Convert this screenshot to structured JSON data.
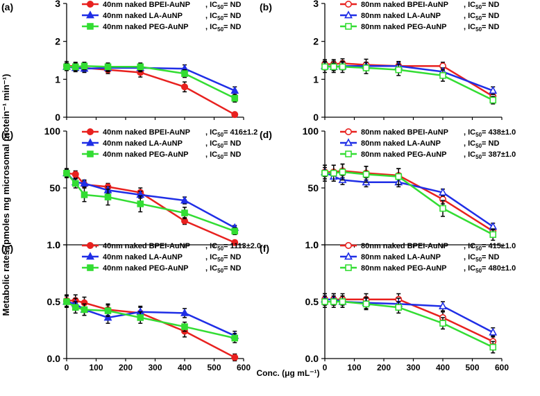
{
  "figure": {
    "ylabel": "Metabolic rates (pmoles mg microsomal protein⁻¹ min⁻¹)",
    "xlabel": "Conc. (μg mL⁻¹)",
    "x_ticks": [
      "0",
      "100",
      "200",
      "300",
      "400",
      "500",
      "600"
    ]
  },
  "colors": {
    "red": "#e8211f",
    "blue": "#1f2ee6",
    "green": "#33dd33",
    "error_bar": "#000000"
  },
  "chart_data": [
    {
      "panel": "(a)",
      "type": "line",
      "marker_style": "filled",
      "x": [
        0,
        30,
        60,
        140,
        250,
        400,
        570
      ],
      "xlim": [
        0,
        600
      ],
      "ylim": [
        0,
        3
      ],
      "yticks": [
        "0",
        "1",
        "2",
        "3"
      ],
      "series": [
        {
          "name": "40nm naked BPEI-AuNP",
          "ic50": "ND",
          "color": "#e8211f",
          "marker": "circle",
          "values": [
            1.35,
            1.35,
            1.3,
            1.25,
            1.18,
            0.8,
            0.07
          ],
          "errors": [
            0.12,
            0.1,
            0.1,
            0.1,
            0.12,
            0.13,
            0.05
          ]
        },
        {
          "name": "40nm naked LA-AuNP",
          "ic50": "ND",
          "color": "#1f2ee6",
          "marker": "triangle",
          "values": [
            1.33,
            1.3,
            1.28,
            1.3,
            1.3,
            1.28,
            0.7
          ],
          "errors": [
            0.1,
            0.1,
            0.1,
            0.1,
            0.1,
            0.1,
            0.1
          ]
        },
        {
          "name": "40nm naked PEG-AuNP",
          "ic50": "ND",
          "color": "#33dd33",
          "marker": "square",
          "values": [
            1.33,
            1.33,
            1.35,
            1.33,
            1.33,
            1.15,
            0.5
          ],
          "errors": [
            0.1,
            0.1,
            0.1,
            0.1,
            0.1,
            0.1,
            0.1
          ]
        }
      ]
    },
    {
      "panel": "(b)",
      "type": "line",
      "marker_style": "open",
      "x": [
        0,
        30,
        60,
        140,
        250,
        400,
        570
      ],
      "xlim": [
        0,
        600
      ],
      "ylim": [
        0,
        3
      ],
      "yticks": [
        "0",
        "1",
        "2",
        "3"
      ],
      "series": [
        {
          "name": "80nm naked BPEI-AuNP",
          "ic50": "ND",
          "color": "#e8211f",
          "marker": "circle",
          "values": [
            1.4,
            1.4,
            1.42,
            1.38,
            1.35,
            1.35,
            0.55
          ],
          "errors": [
            0.12,
            0.12,
            0.12,
            0.15,
            0.12,
            0.1,
            0.1
          ]
        },
        {
          "name": "80nm naked LA-AuNP",
          "ic50": "ND",
          "color": "#1f2ee6",
          "marker": "triangle",
          "values": [
            1.35,
            1.33,
            1.35,
            1.35,
            1.35,
            1.2,
            0.7
          ],
          "errors": [
            0.1,
            0.1,
            0.1,
            0.1,
            0.1,
            0.1,
            0.1
          ]
        },
        {
          "name": "80nm naked PEG-AuNP",
          "ic50": "ND",
          "color": "#33dd33",
          "marker": "square",
          "values": [
            1.33,
            1.33,
            1.33,
            1.3,
            1.25,
            1.1,
            0.45
          ],
          "errors": [
            0.15,
            0.15,
            0.15,
            0.15,
            0.15,
            0.15,
            0.1
          ]
        }
      ]
    },
    {
      "panel": "(c)",
      "type": "line",
      "marker_style": "filled",
      "x": [
        0,
        30,
        60,
        140,
        250,
        400,
        570
      ],
      "xlim": [
        0,
        600
      ],
      "ylim": [
        0,
        100
      ],
      "yticks": [
        "0",
        "50",
        "100"
      ],
      "series": [
        {
          "name": "40nm naked BPEI-AuNP",
          "ic50": "416±1.2",
          "color": "#e8211f",
          "marker": "circle",
          "values": [
            63,
            62,
            53,
            51,
            46,
            21,
            2
          ],
          "errors": [
            4,
            3,
            3,
            3,
            4,
            3,
            2
          ]
        },
        {
          "name": "40nm naked LA-AuNP",
          "ic50": "ND",
          "color": "#1f2ee6",
          "marker": "triangle",
          "values": [
            63,
            55,
            54,
            48,
            44,
            39,
            15
          ],
          "errors": [
            3,
            3,
            3,
            3,
            3,
            3,
            2
          ]
        },
        {
          "name": "40nm naked PEG-AuNP",
          "ic50": "ND",
          "color": "#33dd33",
          "marker": "square",
          "values": [
            63,
            54,
            44,
            42,
            36,
            28,
            12
          ],
          "errors": [
            4,
            4,
            6,
            7,
            7,
            5,
            3
          ]
        }
      ]
    },
    {
      "panel": "(d)",
      "type": "line",
      "marker_style": "open",
      "x": [
        0,
        30,
        60,
        140,
        250,
        400,
        570
      ],
      "xlim": [
        0,
        600
      ],
      "ylim": [
        0,
        100
      ],
      "yticks": [
        "0",
        "50",
        "100"
      ],
      "series": [
        {
          "name": "80nm naked BPEI-AuNP",
          "ic50": "438±1.0",
          "color": "#e8211f",
          "marker": "circle",
          "values": [
            64,
            64,
            65,
            63,
            61,
            40,
            12
          ],
          "errors": [
            6,
            6,
            6,
            6,
            6,
            4,
            4
          ]
        },
        {
          "name": "80nm naked LA-AuNP",
          "ic50": "ND",
          "color": "#1f2ee6",
          "marker": "triangle",
          "values": [
            64,
            60,
            57,
            55,
            55,
            46,
            16
          ],
          "errors": [
            4,
            4,
            4,
            4,
            4,
            3,
            3
          ]
        },
        {
          "name": "80nm naked PEG-AuNP",
          "ic50": "387±1.0",
          "color": "#33dd33",
          "marker": "square",
          "values": [
            63,
            63,
            64,
            62,
            60,
            32,
            9
          ],
          "errors": [
            7,
            7,
            7,
            7,
            7,
            7,
            5
          ]
        }
      ]
    },
    {
      "panel": "(e)",
      "type": "line",
      "marker_style": "filled",
      "x": [
        0,
        30,
        60,
        140,
        250,
        400,
        570
      ],
      "xlim": [
        0,
        600
      ],
      "ylim": [
        0,
        1
      ],
      "yticks": [
        "0.0",
        "0.5",
        "1.0"
      ],
      "series": [
        {
          "name": "40nm naked BPEI-AuNP",
          "ic50": "1113±2.0",
          "color": "#e8211f",
          "marker": "circle",
          "values": [
            0.51,
            0.51,
            0.49,
            0.43,
            0.4,
            0.24,
            0.01
          ],
          "errors": [
            0.05,
            0.05,
            0.05,
            0.05,
            0.05,
            0.05,
            0.03
          ]
        },
        {
          "name": "40nm naked LA-AuNP",
          "ic50": "ND",
          "color": "#1f2ee6",
          "marker": "triangle",
          "values": [
            0.5,
            0.48,
            0.43,
            0.36,
            0.41,
            0.4,
            0.2
          ],
          "errors": [
            0.05,
            0.05,
            0.05,
            0.05,
            0.05,
            0.04,
            0.04
          ]
        },
        {
          "name": "40nm naked PEG-AuNP",
          "ic50": "ND",
          "color": "#33dd33",
          "marker": "square",
          "values": [
            0.5,
            0.45,
            0.43,
            0.42,
            0.36,
            0.28,
            0.18
          ],
          "errors": [
            0.05,
            0.05,
            0.05,
            0.05,
            0.05,
            0.04,
            0.04
          ]
        }
      ]
    },
    {
      "panel": "(f)",
      "type": "line",
      "marker_style": "open",
      "x": [
        0,
        30,
        60,
        140,
        250,
        400,
        570
      ],
      "xlim": [
        0,
        600
      ],
      "ylim": [
        0,
        1
      ],
      "yticks": [
        "0.0",
        "0.5",
        "1.0"
      ],
      "series": [
        {
          "name": "80nm naked BPEI-AuNP",
          "ic50": "415±1.0",
          "color": "#e8211f",
          "marker": "circle",
          "values": [
            0.52,
            0.52,
            0.52,
            0.52,
            0.52,
            0.36,
            0.15
          ],
          "errors": [
            0.05,
            0.05,
            0.05,
            0.05,
            0.05,
            0.05,
            0.05
          ]
        },
        {
          "name": "80nm naked LA-AuNP",
          "ic50": "ND",
          "color": "#1f2ee6",
          "marker": "triangle",
          "values": [
            0.52,
            0.52,
            0.5,
            0.49,
            0.48,
            0.46,
            0.23
          ],
          "errors": [
            0.05,
            0.05,
            0.05,
            0.05,
            0.05,
            0.04,
            0.04
          ]
        },
        {
          "name": "80nm naked PEG-AuNP",
          "ic50": "480±1.0",
          "color": "#33dd33",
          "marker": "square",
          "values": [
            0.5,
            0.5,
            0.5,
            0.48,
            0.45,
            0.31,
            0.1
          ],
          "errors": [
            0.05,
            0.05,
            0.05,
            0.05,
            0.05,
            0.05,
            0.05
          ]
        }
      ]
    }
  ]
}
